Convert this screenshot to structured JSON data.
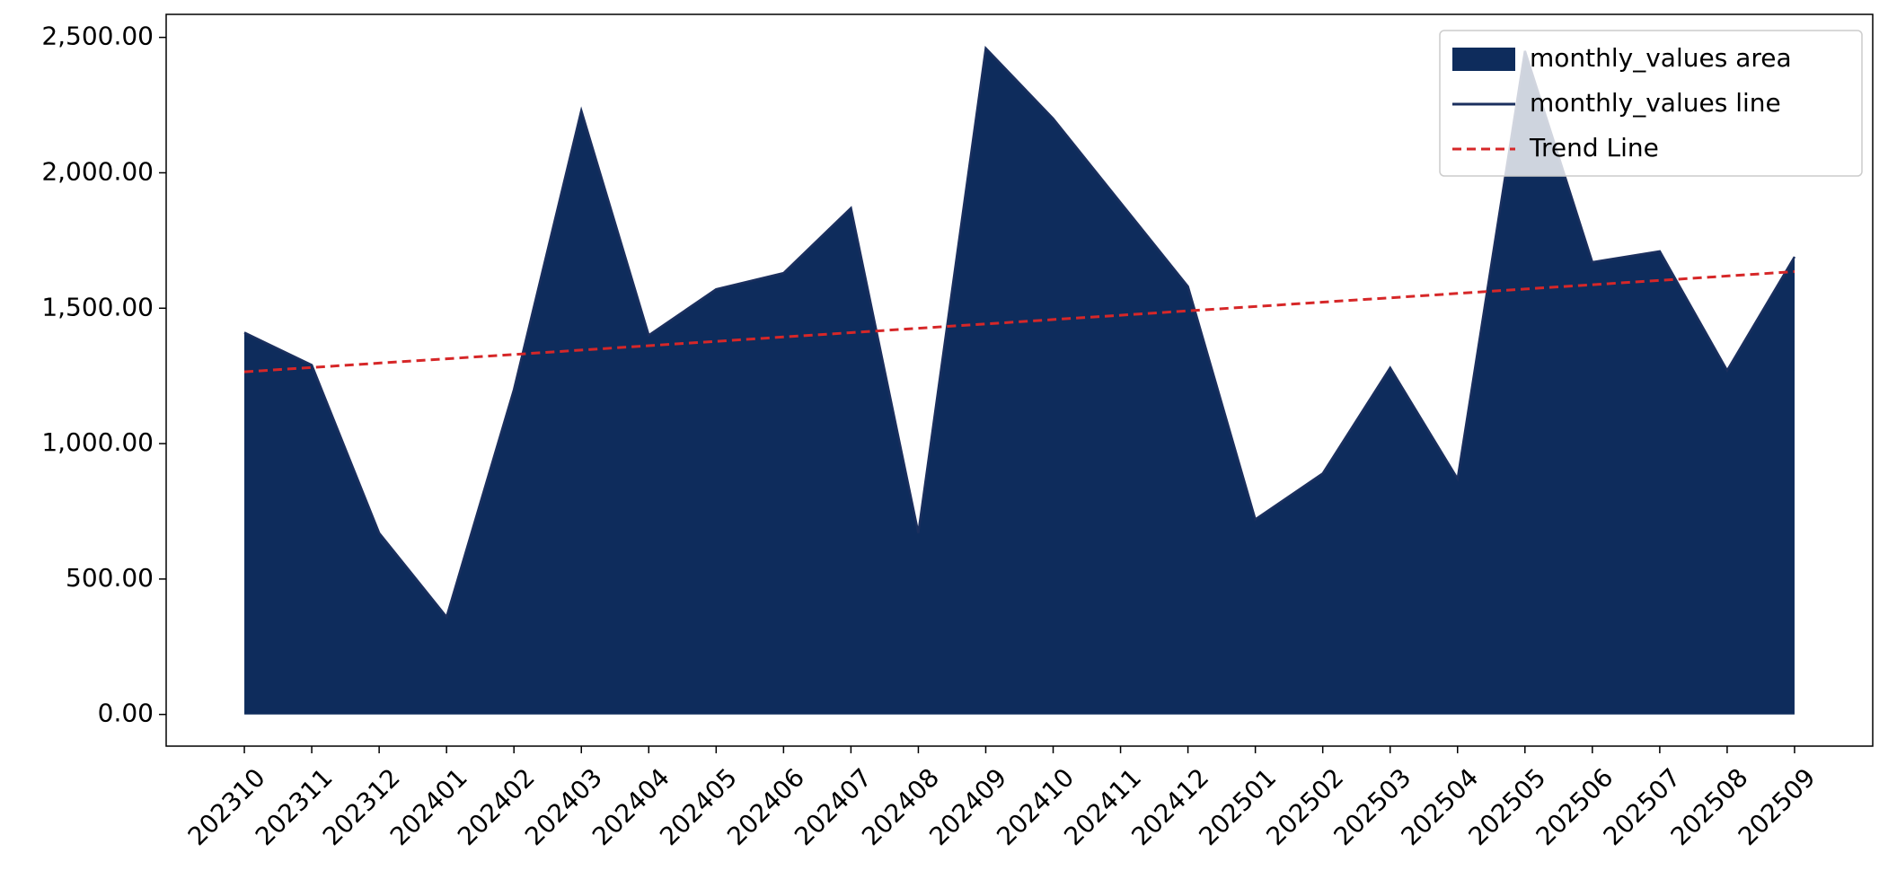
{
  "chart_data": {
    "type": "area",
    "categories": [
      "202310",
      "202311",
      "202312",
      "202401",
      "202402",
      "202403",
      "202404",
      "202405",
      "202406",
      "202407",
      "202408",
      "202409",
      "202410",
      "202411",
      "202412",
      "202501",
      "202502",
      "202503",
      "202504",
      "202505",
      "202506",
      "202507",
      "202508",
      "202509"
    ],
    "series": [
      {
        "name": "monthly_values area",
        "kind": "area",
        "color": "#0e2c5c",
        "values": [
          1410,
          1290,
          670,
          360,
          1200,
          2230,
          1400,
          1570,
          1630,
          1870,
          670,
          2460,
          2200,
          1890,
          1580,
          720,
          890,
          1280,
          870,
          2450,
          1670,
          1710,
          1270,
          1690
        ]
      },
      {
        "name": "monthly_values line",
        "kind": "line",
        "color": "#1a2f5e",
        "values": [
          1410,
          1290,
          670,
          360,
          1200,
          2230,
          1400,
          1570,
          1630,
          1870,
          670,
          2460,
          2200,
          1890,
          1580,
          720,
          890,
          1280,
          870,
          2450,
          1670,
          1710,
          1270,
          1690
        ]
      },
      {
        "name": "Trend Line",
        "kind": "dashed",
        "color": "#d62728",
        "values": [
          1265,
          1281.1,
          1297.2,
          1313.3,
          1329.3,
          1345.4,
          1361.5,
          1377.6,
          1393.7,
          1409.8,
          1425.9,
          1441.9,
          1458.0,
          1474.1,
          1490.2,
          1506.3,
          1522.4,
          1538.5,
          1554.6,
          1570.7,
          1586.7,
          1602.8,
          1618.9,
          1635
        ]
      }
    ],
    "ylim": [
      -117,
      2585
    ],
    "yticks": [
      {
        "value": 0,
        "label": "0.00"
      },
      {
        "value": 500,
        "label": "500.00"
      },
      {
        "value": 1000,
        "label": "1,000.00"
      },
      {
        "value": 1500,
        "label": "1,500.00"
      },
      {
        "value": 2000,
        "label": "2,000.00"
      },
      {
        "value": 2500,
        "label": "2,500.00"
      }
    ],
    "legend": "upper right",
    "grid": false
  }
}
